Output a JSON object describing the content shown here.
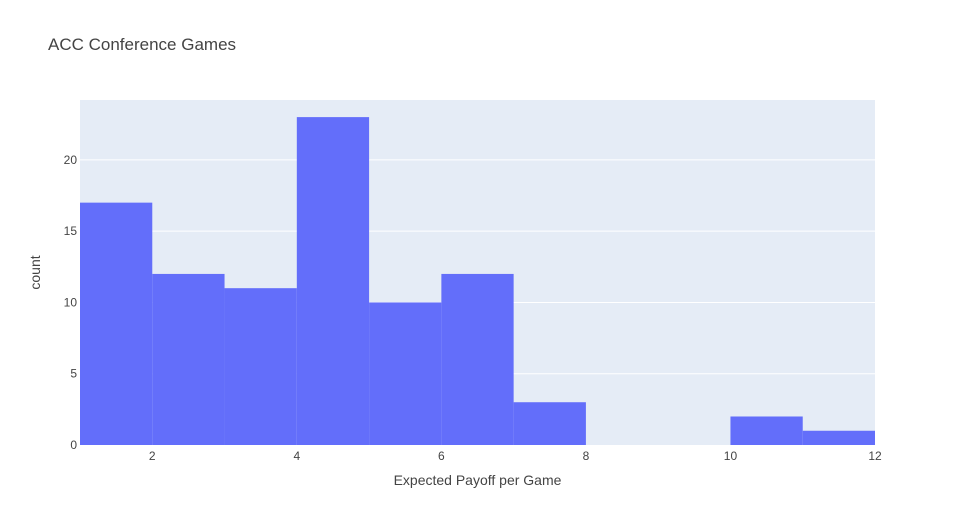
{
  "chart_data": {
    "type": "bar",
    "title": "ACC Conference Games",
    "xlabel": "Expected Payoff per Game",
    "ylabel": "count",
    "bin_edges": [
      1,
      2,
      3,
      4,
      5,
      6,
      7,
      8,
      9,
      10,
      11,
      12
    ],
    "values": [
      17,
      12,
      11,
      23,
      10,
      12,
      3,
      0,
      0,
      2,
      1
    ],
    "xlim": [
      1,
      12
    ],
    "ylim": [
      0,
      24.2
    ],
    "xticks": [
      2,
      4,
      6,
      8,
      10,
      12
    ],
    "yticks": [
      0,
      5,
      10,
      15,
      20
    ],
    "grid": true,
    "colors": {
      "bar": "#636efa",
      "plot_bg": "#e5ecf6",
      "grid": "#ffffff",
      "text": "#444444"
    }
  }
}
